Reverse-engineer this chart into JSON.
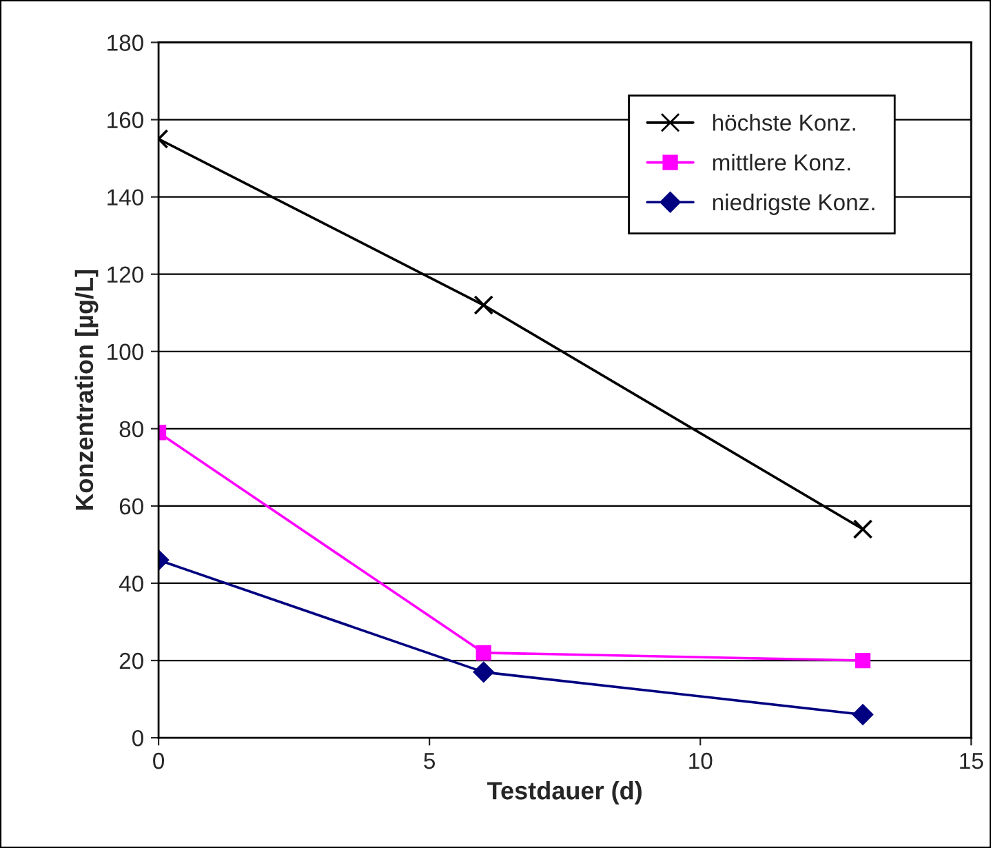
{
  "chart_data": {
    "type": "line",
    "xlabel": "Testdauer (d)",
    "ylabel": "Konzentration [µg/L]",
    "x": [
      0,
      6,
      13
    ],
    "series": [
      {
        "name": "höchste Konz.",
        "color": "#000000",
        "marker": "cross",
        "values": [
          155,
          112,
          54
        ]
      },
      {
        "name": "mittlere Konz.",
        "color": "#ff00ff",
        "marker": "square",
        "values": [
          79,
          22,
          20
        ]
      },
      {
        "name": "niedrigste Konz.",
        "color": "#000080",
        "marker": "diamond",
        "values": [
          46,
          17,
          6
        ]
      }
    ],
    "xlim": [
      0,
      15
    ],
    "xticks": [
      0,
      5,
      10,
      15
    ],
    "ylim": [
      0,
      180
    ],
    "yticks": [
      0,
      20,
      40,
      60,
      80,
      100,
      120,
      140,
      160,
      180
    ],
    "grid": "y",
    "legend": "top right",
    "line_style": "solid"
  }
}
